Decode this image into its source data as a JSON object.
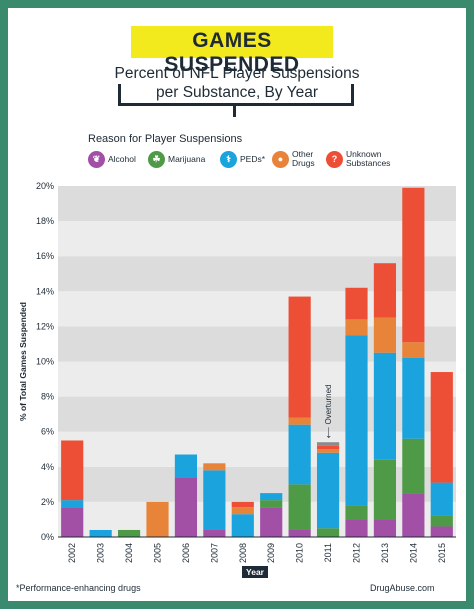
{
  "header": {
    "title": "GAMES SUSPENDED",
    "subtitle_line1": "Percent of NFL Player Suspensions",
    "subtitle_line2": "per Substance, By Year"
  },
  "legend": {
    "title": "Reason for Player Suspensions",
    "items": [
      {
        "label": "Alcohol",
        "color": "#a24fa6",
        "icon": "bottle-icon",
        "glyph": "❦"
      },
      {
        "label": "Marijuana",
        "color": "#4f9a47",
        "icon": "leaf-icon",
        "glyph": "☘"
      },
      {
        "label": "PEDs*",
        "color": "#1aa3dd",
        "icon": "syringe-icon",
        "glyph": "⚕"
      },
      {
        "label": "Other\nDrugs",
        "color": "#e8833a",
        "icon": "pill-icon",
        "glyph": "●"
      },
      {
        "label": "Unknown\nSubstances",
        "color": "#ec4f36",
        "icon": "question-icon",
        "glyph": "?"
      }
    ]
  },
  "footer": {
    "note": "*Performance-enhancing drugs",
    "brand": "DrugAbuse.com"
  },
  "chart_data": {
    "type": "bar",
    "stacked": true,
    "ylabel": "% of Total Games Suspended",
    "xlabel": "Year",
    "ylim": [
      0,
      20
    ],
    "yticks": [
      "0%",
      "2%",
      "4%",
      "6%",
      "8%",
      "10%",
      "12%",
      "14%",
      "16%",
      "18%",
      "20%"
    ],
    "categories": [
      "2002",
      "2003",
      "2004",
      "2005",
      "2006",
      "2007",
      "2008",
      "2009",
      "2010",
      "2011",
      "2012",
      "2013",
      "2014",
      "2015"
    ],
    "series": [
      {
        "name": "Alcohol",
        "color": "#a24fa6",
        "values": [
          1.7,
          0,
          0,
          0,
          3.4,
          0.4,
          0,
          1.7,
          0.4,
          0,
          1.0,
          1.0,
          2.5,
          0.6
        ]
      },
      {
        "name": "Marijuana",
        "color": "#4f9a47",
        "values": [
          0,
          0,
          0.4,
          0,
          0,
          0,
          0,
          0.4,
          2.6,
          0.5,
          0.8,
          3.4,
          3.1,
          0.6
        ]
      },
      {
        "name": "PEDs*",
        "color": "#1aa3dd",
        "values": [
          0.4,
          0.4,
          0,
          0,
          1.3,
          3.4,
          1.3,
          0.4,
          3.4,
          4.3,
          9.7,
          6.1,
          4.6,
          1.9
        ]
      },
      {
        "name": "Other Drugs",
        "color": "#e8833a",
        "values": [
          0,
          0,
          0,
          2.0,
          0,
          0.4,
          0.4,
          0,
          0.4,
          0.2,
          0.9,
          2.0,
          0.9,
          0
        ]
      },
      {
        "name": "Unknown Substances",
        "color": "#ec4f36",
        "values": [
          3.4,
          0,
          0,
          0,
          0,
          0,
          0.3,
          0,
          6.9,
          0.2,
          1.8,
          3.1,
          8.8,
          6.3
        ]
      }
    ],
    "overturned": {
      "category": "2011",
      "value": 0.2,
      "label": "Overturned",
      "color": "#8a8a8a"
    },
    "annotation": "Overturned",
    "grid": "alternating bands"
  }
}
